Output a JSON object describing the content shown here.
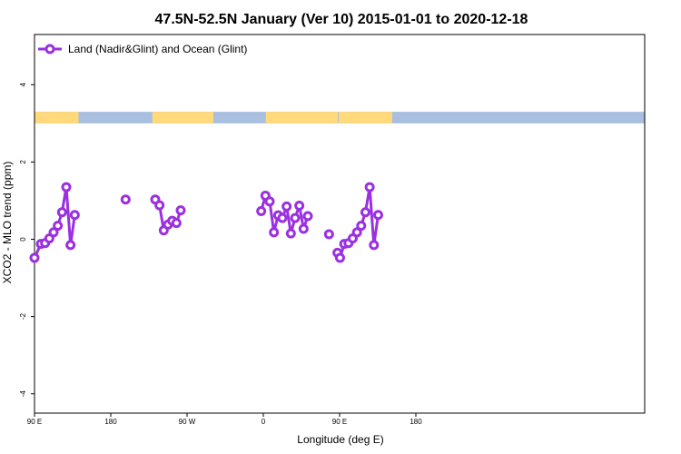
{
  "chart_data": {
    "type": "line",
    "title": "47.5N-52.5N January (Ver 10)   2015-01-01 to 2020-12-18",
    "xlabel": "Longitude (deg E)",
    "ylabel": "XCO2 - MLO trend (ppm)",
    "xlim": [
      90,
      450
    ],
    "ylim": [
      -4.5,
      5.3
    ],
    "x_ticks": [
      {
        "value": 90,
        "label": "90 E"
      },
      {
        "value": 180,
        "label": "180"
      },
      {
        "value": 270,
        "label": "90 W"
      },
      {
        "value": 360,
        "label": "0"
      },
      {
        "value": 450,
        "label": "90 E"
      },
      {
        "value": 540,
        "label": "180"
      }
    ],
    "y_ticks": [
      {
        "value": -4,
        "label": "-4"
      },
      {
        "value": -2,
        "label": "-2"
      },
      {
        "value": 0,
        "label": "0"
      },
      {
        "value": 2,
        "label": "2"
      },
      {
        "value": 4,
        "label": "4"
      }
    ],
    "grid": false,
    "legend_position": "top-left",
    "land_ocean_band": {
      "y_range": [
        3.0,
        3.3
      ],
      "land_color": "#FFD97A",
      "ocean_color": "#A9BFE0",
      "land_segments": [
        [
          90,
          142
        ],
        [
          229,
          301
        ],
        [
          363,
          448
        ],
        [
          449,
          512
        ]
      ]
    },
    "series": [
      {
        "name": "Land (Nadir&Glint) and Ocean (Glint)",
        "color": "#9B30E0",
        "segments": [
          [
            [
              90,
              -0.48
            ],
            [
              97.5,
              -0.12
            ],
            [
              102.5,
              -0.1
            ],
            [
              107.5,
              0.02
            ],
            [
              112.5,
              0.18
            ],
            [
              117.5,
              0.35
            ],
            [
              122.5,
              0.7
            ],
            [
              127.5,
              1.35
            ],
            [
              132.5,
              -0.15
            ],
            [
              137.5,
              0.63
            ]
          ],
          [
            [
              197.5,
              1.03
            ]
          ],
          [
            [
              232.5,
              1.03
            ],
            [
              237.5,
              0.88
            ],
            [
              242.5,
              0.23
            ],
            [
              247.5,
              0.38
            ],
            [
              252.5,
              0.48
            ],
            [
              257.5,
              0.42
            ],
            [
              262.5,
              0.75
            ]
          ],
          [
            [
              357.5,
              0.73
            ],
            [
              362.5,
              1.13
            ],
            [
              367.5,
              0.98
            ],
            [
              372.5,
              0.18
            ],
            [
              377.5,
              0.62
            ],
            [
              382.5,
              0.55
            ],
            [
              387.5,
              0.85
            ],
            [
              392.5,
              0.15
            ],
            [
              397.5,
              0.55
            ],
            [
              402.5,
              0.87
            ],
            [
              407.5,
              0.27
            ],
            [
              412.5,
              0.6
            ]
          ],
          [
            [
              437.5,
              0.13
            ]
          ],
          [
            [
              447.5,
              -0.35
            ],
            [
              450.5,
              -0.48
            ],
            [
              455.5,
              -0.12
            ],
            [
              460.5,
              -0.1
            ],
            [
              465.5,
              0.02
            ],
            [
              470.5,
              0.18
            ],
            [
              475.5,
              0.35
            ],
            [
              480.5,
              0.7
            ],
            [
              485.5,
              1.35
            ],
            [
              490.5,
              -0.15
            ],
            [
              495.5,
              0.63
            ]
          ]
        ]
      }
    ]
  }
}
